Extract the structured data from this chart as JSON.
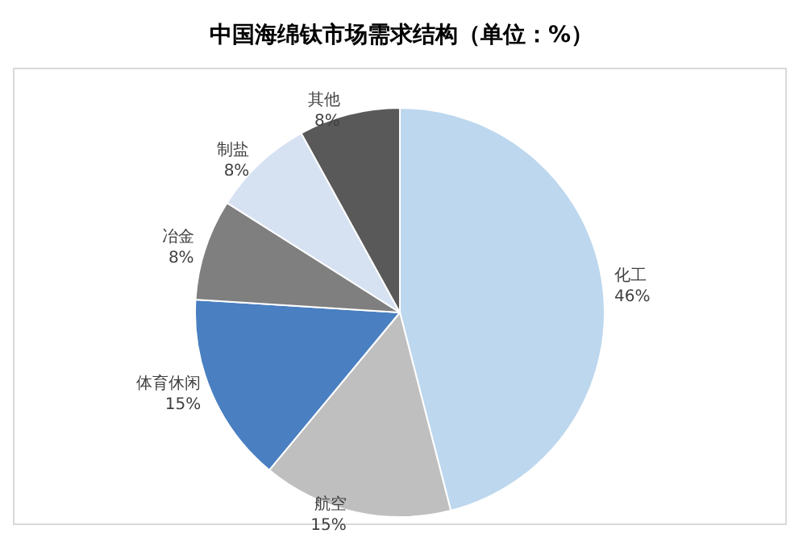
{
  "chart_data": {
    "type": "pie",
    "title": "中国海绵钛市场需求结构（单位：%）",
    "categories": [
      "化工",
      "航空",
      "体育休闲",
      "冶金",
      "制盐",
      "其他"
    ],
    "values": [
      46,
      15,
      15,
      8,
      8,
      8
    ],
    "value_labels": [
      "46%",
      "15%",
      "15%",
      "8%",
      "8%",
      "8%"
    ],
    "colors": [
      "#bdd7ee",
      "#bfbfbf",
      "#4a7fc1",
      "#7f7f7f",
      "#d6e2f2",
      "#595959"
    ],
    "legend": false
  }
}
